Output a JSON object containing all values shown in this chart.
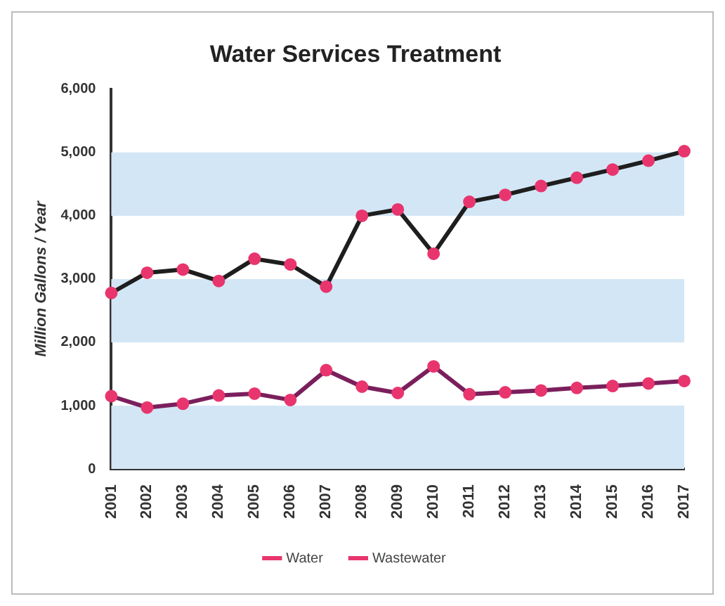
{
  "chart_data": {
    "type": "line",
    "title": "Water Services Treatment",
    "ylabel": "Million Gallons / Year",
    "categories": [
      "2001",
      "2002",
      "2003",
      "2004",
      "2005",
      "2006",
      "2007",
      "2008",
      "2009",
      "2010",
      "2011",
      "2012",
      "2013",
      "2014",
      "2015",
      "2016",
      "2017"
    ],
    "series": [
      {
        "name": "Water",
        "color": "#1e1e1e",
        "values": [
          2780,
          3100,
          3150,
          2970,
          3320,
          3230,
          2880,
          4000,
          4100,
          3400,
          4220,
          4330,
          4470,
          4600,
          4730,
          4870,
          5020
        ]
      },
      {
        "name": "Wastewater",
        "color": "#7a1f5c",
        "values": [
          1150,
          970,
          1030,
          1160,
          1190,
          1090,
          1560,
          1300,
          1200,
          1620,
          1180,
          1210,
          1240,
          1280,
          1310,
          1350,
          1390
        ]
      }
    ],
    "ylim": [
      0,
      6000
    ],
    "yticks": [
      {
        "value": 0,
        "label": "0"
      },
      {
        "value": 1000,
        "label": "1,000"
      },
      {
        "value": 2000,
        "label": "2,000"
      },
      {
        "value": 3000,
        "label": "3,000"
      },
      {
        "value": 4000,
        "label": "4,000"
      },
      {
        "value": 5000,
        "label": "5,000"
      },
      {
        "value": 6000,
        "label": "6,000"
      }
    ],
    "bands": [
      {
        "axis": "y",
        "from": 0,
        "to": 1000,
        "color": "#d3e6f5"
      },
      {
        "axis": "y",
        "from": 2000,
        "to": 3000,
        "color": "#d3e6f5"
      },
      {
        "axis": "y",
        "from": 4000,
        "to": 5000,
        "color": "#d3e6f5"
      }
    ],
    "grid": false,
    "legend": "bottom",
    "marker": "circle",
    "line_style": "solid"
  }
}
